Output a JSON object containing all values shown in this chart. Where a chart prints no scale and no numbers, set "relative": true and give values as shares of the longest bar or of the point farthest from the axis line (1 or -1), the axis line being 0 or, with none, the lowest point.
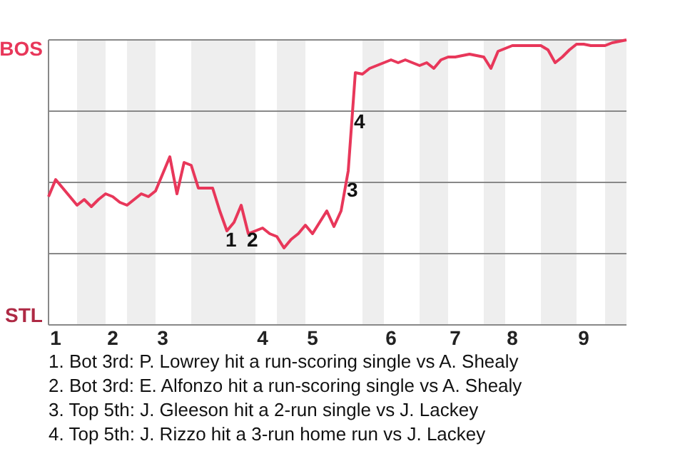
{
  "chart_data": {
    "type": "line",
    "relative": true,
    "categories": [
      null,
      "1",
      null,
      null,
      null,
      null,
      null,
      null,
      null,
      "2",
      null,
      null,
      null,
      null,
      null,
      null,
      "3",
      null,
      null,
      null,
      null,
      null,
      null,
      null,
      null,
      null,
      null,
      null,
      null,
      null,
      "4",
      null,
      null,
      null,
      null,
      null,
      null,
      "5",
      null,
      null,
      null,
      null,
      null,
      null,
      null,
      null,
      null,
      null,
      "6",
      null,
      null,
      null,
      null,
      null,
      null,
      null,
      null,
      "7",
      null,
      null,
      null,
      null,
      null,
      null,
      null,
      "8",
      null,
      null,
      null,
      null,
      null,
      null,
      null,
      null,
      null,
      "9",
      null,
      null,
      null,
      null,
      null,
      null
    ],
    "series": [
      {
        "color": "#e8375a",
        "values": [
          0.45,
          0.51,
          0.48,
          0.45,
          0.42,
          0.44,
          0.415,
          0.44,
          0.46,
          0.45,
          0.43,
          0.42,
          0.44,
          0.46,
          0.45,
          0.47,
          0.53,
          0.59,
          0.46,
          0.57,
          0.56,
          0.48,
          0.48,
          0.48,
          0.4,
          0.33,
          0.36,
          0.42,
          0.32,
          0.33,
          0.34,
          0.32,
          0.31,
          0.27,
          0.3,
          0.32,
          0.35,
          0.32,
          0.36,
          0.4,
          0.345,
          0.4,
          0.54,
          0.885,
          0.88,
          0.9,
          0.91,
          0.92,
          0.93,
          0.92,
          0.93,
          0.92,
          0.91,
          0.92,
          0.9,
          0.93,
          0.94,
          0.94,
          0.945,
          0.95,
          0.945,
          0.94,
          0.9,
          0.96,
          0.97,
          0.98,
          0.98,
          0.98,
          0.98,
          0.98,
          0.965,
          0.92,
          0.94,
          0.965,
          0.985,
          0.985,
          0.98,
          0.98,
          0.98,
          0.99,
          0.995,
          1
        ]
      }
    ],
    "line_style": "solid",
    "ref_lines": [
      {
        "axis": "y",
        "value": 0.25,
        "color": "#888888"
      },
      {
        "axis": "y",
        "value": 0.5,
        "color": "#888888"
      },
      {
        "axis": "y",
        "value": 0.75,
        "color": "#888888"
      },
      {
        "axis": "y",
        "value": 1,
        "color": "#888888"
      }
    ],
    "annotations": [
      "BOS",
      "STL",
      "1",
      "2",
      "3",
      "4",
      "1. Bot 3rd: P. Lowrey hit a run-scoring single vs A. Shealy",
      "2. Bot 3rd: E. Alfonzo hit a run-scoring single vs A. Shealy",
      "3. Top 5th: J. Gleeson hit a 2-run single vs J. Lackey",
      "4. Top 5th: J. Rizzo hit a 3-run home run vs J. Lackey"
    ]
  }
}
